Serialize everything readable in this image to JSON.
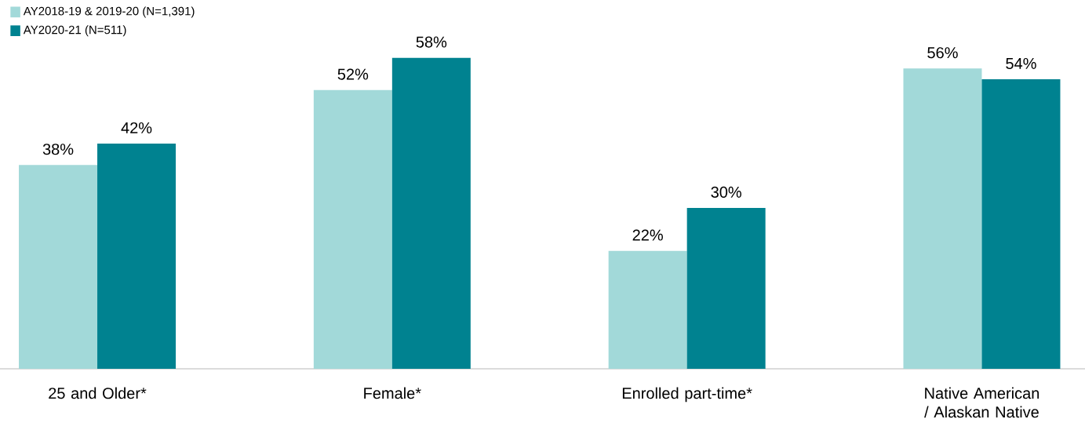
{
  "chart_data": {
    "type": "bar",
    "categories": [
      "25 and Older*",
      "Female*",
      "Enrolled part-time*",
      "Native American / Alaskan Native"
    ],
    "series": [
      {
        "name": "AY2018-19 & 2019-20 (N=1,391)",
        "color": "#a2d9d9",
        "values": [
          38,
          52,
          22,
          56
        ],
        "value_labels": [
          "38%",
          "52%",
          "22%",
          "56%"
        ]
      },
      {
        "name": "AY2020-21 (N=511)",
        "color": "#008290",
        "values": [
          42,
          58,
          30,
          54
        ],
        "value_labels": [
          "42%",
          "58%",
          "30%",
          "54%"
        ]
      }
    ],
    "legend": "top left"
  }
}
